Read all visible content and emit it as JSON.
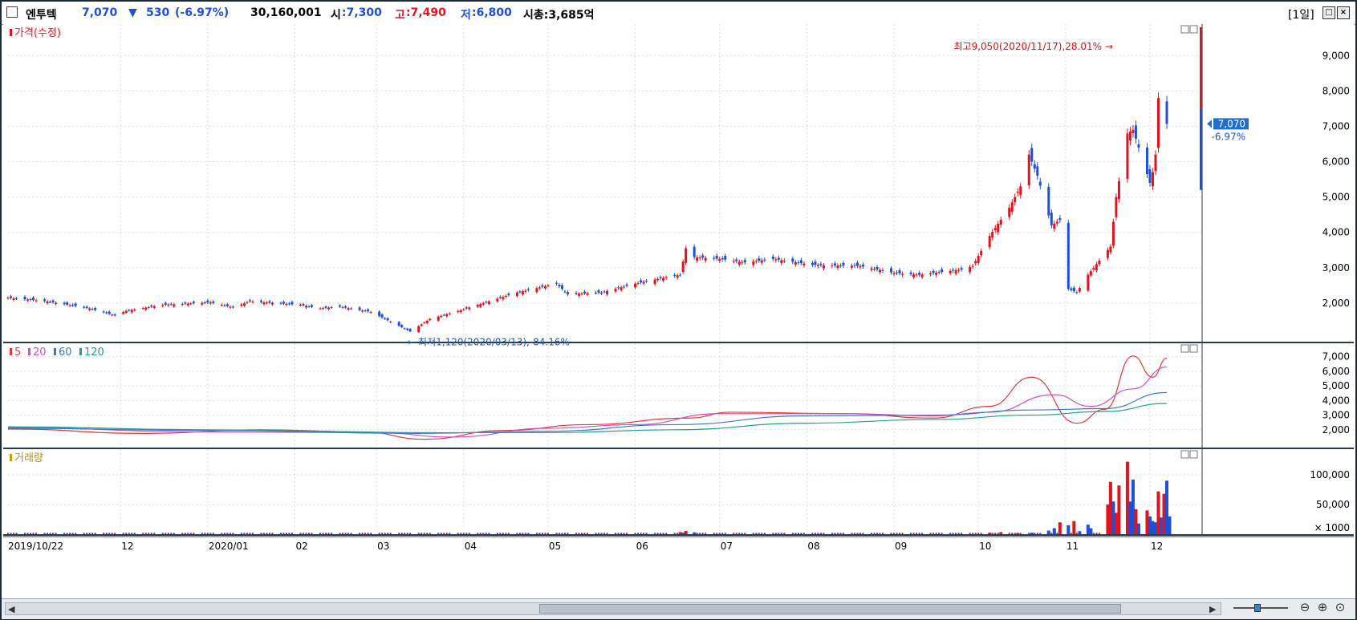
{
  "header": {
    "stock_name": "엔투텍",
    "price": "7,070",
    "change_arrow": "▼",
    "change": "530",
    "change_pct": "(-6.97%)",
    "volume": "30,160,001",
    "open_label": "시",
    "open": ":7,300",
    "high_label": "고",
    "high": ":7,490",
    "low_label": "저",
    "low": ":6,800",
    "marketcap": "시총:3,685억",
    "period": "[1일]",
    "colors": {
      "up": "#e0141e",
      "down": "#1e4fd7",
      "ink": "#000000"
    }
  },
  "chart_data": [
    {
      "type": "candlestick",
      "title": "가격(수정)",
      "yticks": [
        2000,
        3000,
        4000,
        5000,
        6000,
        7000,
        8000,
        9000
      ],
      "ytick_labels": [
        "2,000",
        "3,000",
        "4,000",
        "5,000",
        "6,000",
        "7,000",
        "8,000",
        "9,000"
      ],
      "ylim": [
        1000,
        9800
      ],
      "x": [
        "2019/10/22",
        "12",
        "2020/01",
        "02",
        "03",
        "04",
        "05",
        "06",
        "07",
        "08",
        "09",
        "10",
        "11",
        "12"
      ],
      "xlabel_date_positions": [
        "2019-10-22",
        "2019-12-01",
        "2020-01-01",
        "2020-02-01",
        "2020-03-01",
        "2020-04-01",
        "2020-05-01",
        "2020-06-01",
        "2020-07-01",
        "2020-08-01",
        "2020-09-01",
        "2020-10-01",
        "2020-11-01",
        "2020-12-01"
      ],
      "x_range": [
        "2019-10-22",
        "2020-12-07"
      ],
      "close_series": [
        [
          "2019-10-22",
          2150
        ],
        [
          "2019-11-05",
          2050
        ],
        [
          "2019-11-20",
          1850
        ],
        [
          "2019-11-29",
          1650
        ],
        [
          "2019-12-03",
          1780
        ],
        [
          "2019-12-16",
          1950
        ],
        [
          "2020-01-02",
          2020
        ],
        [
          "2020-01-10",
          1880
        ],
        [
          "2020-01-16",
          2050
        ],
        [
          "2020-02-03",
          1950
        ],
        [
          "2020-02-10",
          1850
        ],
        [
          "2020-02-17",
          1900
        ],
        [
          "2020-02-28",
          1750
        ],
        [
          "2020-03-13",
          1200
        ],
        [
          "2020-03-20",
          1550
        ],
        [
          "2020-03-31",
          1800
        ],
        [
          "2020-04-10",
          2050
        ],
        [
          "2020-04-20",
          2300
        ],
        [
          "2020-05-04",
          2550
        ],
        [
          "2020-05-08",
          2250
        ],
        [
          "2020-05-20",
          2300
        ],
        [
          "2020-06-01",
          2550
        ],
        [
          "2020-06-10",
          2700
        ],
        [
          "2020-06-17",
          2800
        ],
        [
          "2020-06-19",
          3550
        ],
        [
          "2020-06-22",
          3300
        ],
        [
          "2020-07-01",
          3250
        ],
        [
          "2020-07-10",
          3150
        ],
        [
          "2020-07-20",
          3250
        ],
        [
          "2020-08-03",
          3080
        ],
        [
          "2020-08-20",
          3050
        ],
        [
          "2020-09-01",
          2850
        ],
        [
          "2020-09-10",
          2800
        ],
        [
          "2020-09-25",
          2950
        ],
        [
          "2020-09-29",
          3050
        ],
        [
          "2020-10-05",
          3900
        ],
        [
          "2020-10-12",
          4700
        ],
        [
          "2020-10-16",
          5300
        ],
        [
          "2020-10-19",
          6200
        ],
        [
          "2020-10-22",
          5600
        ],
        [
          "2020-10-27",
          4200
        ],
        [
          "2020-10-30",
          4350
        ],
        [
          "2020-11-02",
          2400
        ],
        [
          "2020-11-05",
          2300
        ],
        [
          "2020-11-09",
          2800
        ],
        [
          "2020-11-13",
          3200
        ],
        [
          "2020-11-17",
          3600
        ],
        [
          "2020-11-19",
          5000
        ],
        [
          "2020-11-23",
          6800
        ],
        [
          "2020-11-25",
          6900
        ],
        [
          "2020-11-27",
          6400
        ],
        [
          "2020-12-01",
          5400
        ],
        [
          "2020-12-02",
          5700
        ],
        [
          "2020-12-03",
          6200
        ],
        [
          "2020-12-04",
          7800
        ],
        [
          "2020-12-07",
          7070
        ]
      ],
      "annotations": [
        {
          "text": "최고9,050(2020/11/17),28.01%",
          "x": "2020-11-17",
          "y": 9050,
          "color": "#d01414"
        },
        {
          "text": "최저1,120(2020/03/13),-84.16%",
          "x": "2020-03-13",
          "y": 1120,
          "color": "#1e5bb8"
        }
      ],
      "current_price": {
        "label": "7,070",
        "pct": "-6.97%"
      }
    },
    {
      "type": "line",
      "title_items": [
        "5",
        "20",
        "60",
        "120"
      ],
      "yticks": [
        2000,
        3000,
        4000,
        5000,
        6000,
        7000
      ],
      "ytick_labels": [
        "2,000",
        "3,000",
        "4,000",
        "5,000",
        "6,000",
        "7,000"
      ],
      "ylim": [
        1000,
        7700
      ],
      "series": [
        {
          "name": "5",
          "color": "#e0383c",
          "points": [
            [
              "2019-10-22",
              2050
            ],
            [
              "2019-12-10",
              1750
            ],
            [
              "2020-01-20",
              2000
            ],
            [
              "2020-02-25",
              1850
            ],
            [
              "2020-03-18",
              1350
            ],
            [
              "2020-04-15",
              1950
            ],
            [
              "2020-05-15",
              2350
            ],
            [
              "2020-06-20",
              2800
            ],
            [
              "2020-07-05",
              3200
            ],
            [
              "2020-08-15",
              3100
            ],
            [
              "2020-09-15",
              2800
            ],
            [
              "2020-10-05",
              3600
            ],
            [
              "2020-10-20",
              5600
            ],
            [
              "2020-11-05",
              2450
            ],
            [
              "2020-11-15",
              3400
            ],
            [
              "2020-11-25",
              7050
            ],
            [
              "2020-12-02",
              5600
            ],
            [
              "2020-12-07",
              6900
            ]
          ]
        },
        {
          "name": "20",
          "color": "#d050c0",
          "points": [
            [
              "2019-10-22",
              2150
            ],
            [
              "2020-01-01",
              1850
            ],
            [
              "2020-03-01",
              1800
            ],
            [
              "2020-03-28",
              1500
            ],
            [
              "2020-05-01",
              2100
            ],
            [
              "2020-06-01",
              2350
            ],
            [
              "2020-07-01",
              3100
            ],
            [
              "2020-08-15",
              3100
            ],
            [
              "2020-09-15",
              2950
            ],
            [
              "2020-10-05",
              3200
            ],
            [
              "2020-10-28",
              4400
            ],
            [
              "2020-11-10",
              3600
            ],
            [
              "2020-11-25",
              4800
            ],
            [
              "2020-12-07",
              6300
            ]
          ]
        },
        {
          "name": "60",
          "color": "#3c78c8",
          "points": [
            [
              "2019-10-22",
              2100
            ],
            [
              "2020-01-01",
              1950
            ],
            [
              "2020-03-15",
              1750
            ],
            [
              "2020-05-01",
              1900
            ],
            [
              "2020-06-15",
              2350
            ],
            [
              "2020-08-01",
              2950
            ],
            [
              "2020-09-15",
              3000
            ],
            [
              "2020-10-20",
              3350
            ],
            [
              "2020-11-15",
              3450
            ],
            [
              "2020-12-07",
              4550
            ]
          ]
        },
        {
          "name": "120",
          "color": "#20a090",
          "points": [
            [
              "2019-10-22",
              2200
            ],
            [
              "2020-01-01",
              2000
            ],
            [
              "2020-03-20",
              1800
            ],
            [
              "2020-05-01",
              1800
            ],
            [
              "2020-06-15",
              2000
            ],
            [
              "2020-08-01",
              2450
            ],
            [
              "2020-09-15",
              2700
            ],
            [
              "2020-10-20",
              3000
            ],
            [
              "2020-11-15",
              3250
            ],
            [
              "2020-12-07",
              3800
            ]
          ]
        }
      ]
    },
    {
      "type": "bar",
      "title": "거래량",
      "yticks": [
        50000,
        100000
      ],
      "ytick_labels": [
        "50,000",
        "100,000"
      ],
      "unit_label": "× 1000",
      "ylim": [
        0,
        135000
      ],
      "baseline": 1000,
      "bars": [
        {
          "date": "2020-06-17",
          "value": 3500,
          "dir": "up"
        },
        {
          "date": "2020-06-18",
          "value": 2500,
          "dir": "down"
        },
        {
          "date": "2020-06-19",
          "value": 5500,
          "dir": "up"
        },
        {
          "date": "2020-06-22",
          "value": 3000,
          "dir": "down"
        },
        {
          "date": "2020-10-05",
          "value": 2500,
          "dir": "up"
        },
        {
          "date": "2020-10-09",
          "value": 3500,
          "dir": "up"
        },
        {
          "date": "2020-10-15",
          "value": 2000,
          "dir": "up"
        },
        {
          "date": "2020-10-20",
          "value": 2500,
          "dir": "down"
        },
        {
          "date": "2020-10-26",
          "value": 6000,
          "dir": "down"
        },
        {
          "date": "2020-10-28",
          "value": 10000,
          "dir": "down"
        },
        {
          "date": "2020-10-30",
          "value": 20000,
          "dir": "up"
        },
        {
          "date": "2020-11-02",
          "value": 15000,
          "dir": "down"
        },
        {
          "date": "2020-11-04",
          "value": 22000,
          "dir": "up"
        },
        {
          "date": "2020-11-06",
          "value": 5000,
          "dir": "down"
        },
        {
          "date": "2020-11-09",
          "value": 16000,
          "dir": "down"
        },
        {
          "date": "2020-11-10",
          "value": 10000,
          "dir": "down"
        },
        {
          "date": "2020-11-16",
          "value": 50000,
          "dir": "up"
        },
        {
          "date": "2020-11-17",
          "value": 88000,
          "dir": "up"
        },
        {
          "date": "2020-11-18",
          "value": 55000,
          "dir": "down"
        },
        {
          "date": "2020-11-19",
          "value": 36000,
          "dir": "up"
        },
        {
          "date": "2020-11-20",
          "value": 82000,
          "dir": "up"
        },
        {
          "date": "2020-11-23",
          "value": 122000,
          "dir": "up"
        },
        {
          "date": "2020-11-24",
          "value": 55000,
          "dir": "down"
        },
        {
          "date": "2020-11-25",
          "value": 92000,
          "dir": "down"
        },
        {
          "date": "2020-11-26",
          "value": 42000,
          "dir": "up"
        },
        {
          "date": "2020-11-27",
          "value": 18000,
          "dir": "down"
        },
        {
          "date": "2020-11-30",
          "value": 40000,
          "dir": "up"
        },
        {
          "date": "2020-12-01",
          "value": 30000,
          "dir": "down"
        },
        {
          "date": "2020-12-02",
          "value": 22000,
          "dir": "down"
        },
        {
          "date": "2020-12-03",
          "value": 20000,
          "dir": "down"
        },
        {
          "date": "2020-12-04",
          "value": 72000,
          "dir": "up"
        },
        {
          "date": "2020-12-05",
          "value": 28000,
          "dir": "down"
        },
        {
          "date": "2020-12-06",
          "value": 68000,
          "dir": "up"
        },
        {
          "date": "2020-12-07",
          "value": 90000,
          "dir": "down"
        },
        {
          "date": "2020-12-08",
          "value": 30000,
          "dir": "down"
        }
      ]
    }
  ]
}
